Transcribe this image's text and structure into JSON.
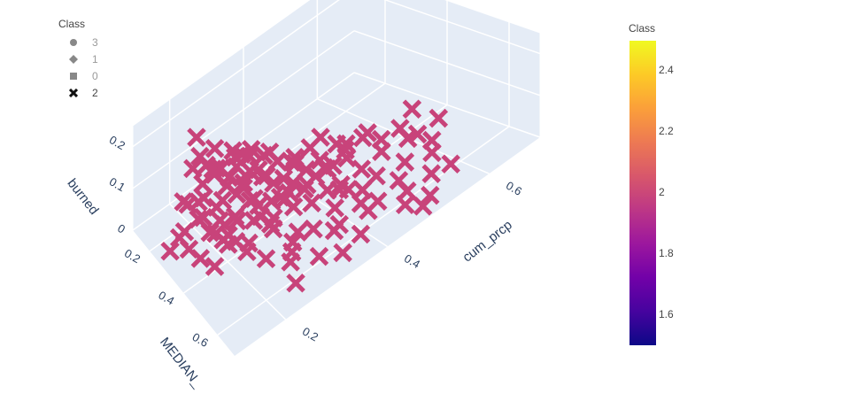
{
  "legend": {
    "title": "Class",
    "items": [
      {
        "label": "3",
        "symbol": "circle",
        "active": false
      },
      {
        "label": "1",
        "symbol": "diamond",
        "active": false
      },
      {
        "label": "0",
        "symbol": "square",
        "active": false
      },
      {
        "label": "2",
        "symbol": "x",
        "active": true
      }
    ]
  },
  "colorbar": {
    "title": "Class",
    "ticks": [
      "2.4",
      "2.2",
      "2",
      "1.8",
      "1.6"
    ],
    "range": [
      1.5,
      2.5
    ],
    "colors": [
      "#0d0887",
      "#46039f",
      "#7201a8",
      "#9c179e",
      "#bd3786",
      "#d8576b",
      "#ed7953",
      "#fb9f3a",
      "#fdca26",
      "#f0f921"
    ]
  },
  "chart_data": {
    "type": "scatter",
    "mode": "3d",
    "axes": {
      "x": {
        "label": "cum_prcp",
        "ticks": [
          "0.2",
          "0.4",
          "0.6"
        ],
        "range": [
          0.1,
          0.7
        ]
      },
      "y": {
        "label": "MEDIAN_",
        "ticks": [
          "0.2",
          "0.4",
          "0.6"
        ],
        "range": [
          0.1,
          0.7
        ]
      },
      "z": {
        "label": "burned",
        "ticks": [
          "0",
          "0.1",
          "0.2"
        ],
        "range": [
          0,
          0.25
        ]
      }
    },
    "series": [
      {
        "name": "2",
        "color": "#c8437a",
        "marker": "x",
        "points": [
          [
            0.18,
            0.3,
            0.22
          ],
          [
            0.22,
            0.33,
            0.1
          ],
          [
            0.25,
            0.3,
            0.12
          ],
          [
            0.2,
            0.36,
            0.08
          ],
          [
            0.28,
            0.34,
            0.06
          ],
          [
            0.3,
            0.3,
            0.1
          ],
          [
            0.24,
            0.28,
            0.14
          ],
          [
            0.21,
            0.31,
            0.16
          ],
          [
            0.26,
            0.35,
            0.11
          ],
          [
            0.32,
            0.32,
            0.08
          ],
          [
            0.19,
            0.27,
            0.09
          ],
          [
            0.23,
            0.38,
            0.13
          ],
          [
            0.27,
            0.29,
            0.15
          ],
          [
            0.29,
            0.36,
            0.05
          ],
          [
            0.22,
            0.3,
            0.07
          ],
          [
            0.25,
            0.33,
            0.04
          ],
          [
            0.31,
            0.28,
            0.12
          ],
          [
            0.17,
            0.34,
            0.1
          ],
          [
            0.2,
            0.29,
            0.18
          ],
          [
            0.28,
            0.31,
            0.09
          ],
          [
            0.34,
            0.3,
            0.06
          ],
          [
            0.24,
            0.36,
            0.05
          ],
          [
            0.21,
            0.25,
            0.11
          ],
          [
            0.26,
            0.27,
            0.08
          ],
          [
            0.3,
            0.34,
            0.12
          ],
          [
            0.23,
            0.32,
            0.03
          ],
          [
            0.33,
            0.35,
            0.07
          ],
          [
            0.18,
            0.32,
            0.13
          ],
          [
            0.27,
            0.38,
            0.09
          ],
          [
            0.35,
            0.33,
            0.1
          ],
          [
            0.4,
            0.3,
            0.05
          ],
          [
            0.38,
            0.35,
            0.08
          ],
          [
            0.42,
            0.28,
            0.04
          ],
          [
            0.36,
            0.38,
            0.06
          ],
          [
            0.45,
            0.33,
            0.03
          ],
          [
            0.39,
            0.42,
            0.07
          ],
          [
            0.44,
            0.4,
            0.05
          ],
          [
            0.41,
            0.36,
            0.1
          ],
          [
            0.47,
            0.3,
            0.06
          ],
          [
            0.37,
            0.32,
            0.04
          ],
          [
            0.43,
            0.45,
            0.03
          ],
          [
            0.48,
            0.38,
            0.05
          ],
          [
            0.36,
            0.44,
            0.08
          ],
          [
            0.5,
            0.35,
            0.04
          ],
          [
            0.46,
            0.42,
            0.06
          ],
          [
            0.3,
            0.4,
            0.07
          ],
          [
            0.33,
            0.44,
            0.05
          ],
          [
            0.28,
            0.45,
            0.04
          ],
          [
            0.35,
            0.48,
            0.06
          ],
          [
            0.31,
            0.5,
            0.03
          ],
          [
            0.26,
            0.48,
            0.08
          ],
          [
            0.38,
            0.52,
            0.04
          ],
          [
            0.32,
            0.55,
            0.05
          ],
          [
            0.4,
            0.5,
            0.06
          ],
          [
            0.29,
            0.52,
            0.03
          ],
          [
            0.36,
            0.58,
            0.04
          ],
          [
            0.42,
            0.55,
            0.03
          ],
          [
            0.34,
            0.6,
            0.05
          ],
          [
            0.45,
            0.5,
            0.02
          ],
          [
            0.27,
            0.56,
            0.04
          ],
          [
            0.3,
            0.62,
            0.03
          ],
          [
            0.38,
            0.63,
            0.02
          ],
          [
            0.25,
            0.6,
            0.05
          ],
          [
            0.33,
            0.66,
            0.03
          ],
          [
            0.41,
            0.6,
            0.04
          ],
          [
            0.22,
            0.55,
            0.06
          ],
          [
            0.24,
            0.65,
            0.03
          ],
          [
            0.2,
            0.5,
            0.07
          ],
          [
            0.18,
            0.45,
            0.08
          ],
          [
            0.16,
            0.4,
            0.1
          ],
          [
            0.48,
            0.5,
            0.03
          ],
          [
            0.52,
            0.45,
            0.04
          ],
          [
            0.55,
            0.4,
            0.03
          ],
          [
            0.5,
            0.55,
            0.02
          ],
          [
            0.56,
            0.48,
            0.05
          ],
          [
            0.58,
            0.42,
            0.04
          ],
          [
            0.53,
            0.52,
            0.03
          ],
          [
            0.6,
            0.45,
            0.02
          ],
          [
            0.57,
            0.55,
            0.03
          ],
          [
            0.62,
            0.4,
            0.05
          ],
          [
            0.44,
            0.58,
            0.03
          ],
          [
            0.49,
            0.6,
            0.02
          ],
          [
            0.46,
            0.65,
            0.03
          ],
          [
            0.54,
            0.6,
            0.02
          ],
          [
            0.51,
            0.65,
            0.01
          ],
          [
            0.15,
            0.36,
            0.12
          ],
          [
            0.14,
            0.3,
            0.14
          ],
          [
            0.13,
            0.33,
            0.09
          ],
          [
            0.16,
            0.28,
            0.11
          ],
          [
            0.19,
            0.4,
            0.06
          ],
          [
            0.21,
            0.42,
            0.05
          ],
          [
            0.23,
            0.44,
            0.04
          ],
          [
            0.25,
            0.42,
            0.07
          ],
          [
            0.27,
            0.41,
            0.06
          ],
          [
            0.29,
            0.43,
            0.05
          ],
          [
            0.31,
            0.42,
            0.08
          ],
          [
            0.34,
            0.4,
            0.06
          ],
          [
            0.37,
            0.41,
            0.05
          ],
          [
            0.39,
            0.38,
            0.07
          ],
          [
            0.42,
            0.4,
            0.06
          ],
          [
            0.12,
            0.38,
            0.08
          ],
          [
            0.11,
            0.35,
            0.1
          ],
          [
            0.1,
            0.32,
            0.06
          ],
          [
            0.13,
            0.42,
            0.07
          ],
          [
            0.15,
            0.45,
            0.05
          ],
          [
            0.2,
            0.34,
            0.04
          ],
          [
            0.22,
            0.36,
            0.03
          ],
          [
            0.24,
            0.24,
            0.12
          ],
          [
            0.26,
            0.22,
            0.1
          ],
          [
            0.2,
            0.22,
            0.14
          ],
          [
            0.35,
            0.27,
            0.09
          ],
          [
            0.33,
            0.25,
            0.11
          ],
          [
            0.37,
            0.26,
            0.08
          ],
          [
            0.29,
            0.24,
            0.13
          ],
          [
            0.31,
            0.22,
            0.07
          ],
          [
            0.4,
            0.45,
            0.04
          ],
          [
            0.43,
            0.48,
            0.03
          ],
          [
            0.47,
            0.46,
            0.04
          ],
          [
            0.52,
            0.38,
            0.05
          ],
          [
            0.49,
            0.33,
            0.04
          ],
          [
            0.19,
            0.26,
            0.24
          ],
          [
            0.27,
            0.32,
            0.17
          ],
          [
            0.23,
            0.27,
            0.19
          ],
          [
            0.35,
            0.36,
            0.02
          ],
          [
            0.45,
            0.36,
            0.02
          ],
          [
            0.55,
            0.35,
            0.03
          ],
          [
            0.6,
            0.5,
            0.02
          ],
          [
            0.64,
            0.46,
            0.03
          ],
          [
            0.58,
            0.6,
            0.01
          ],
          [
            0.48,
            0.68,
            0.02
          ]
        ]
      }
    ]
  }
}
